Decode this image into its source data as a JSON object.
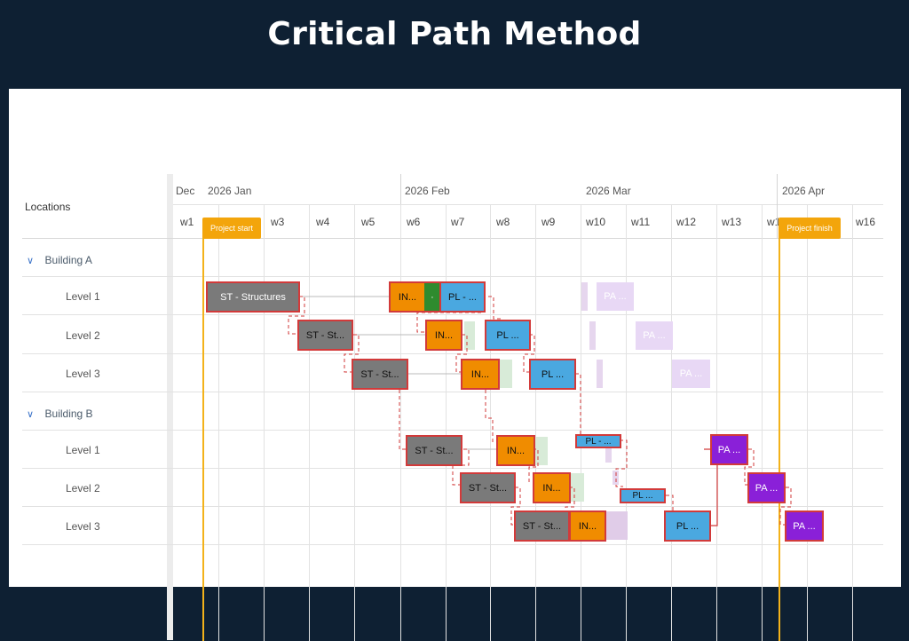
{
  "page_title": "Critical Path Method",
  "header": {
    "locations_label": "Locations",
    "months": [
      "Dec",
      "2026 Jan",
      "2026 Feb",
      "2026 Mar",
      "2026 Apr"
    ],
    "weeks": [
      "w1",
      "w3",
      "w4",
      "w5",
      "w6",
      "w7",
      "w8",
      "w9",
      "w10",
      "w11",
      "w12",
      "w13",
      "w1",
      "w16"
    ]
  },
  "milestones": {
    "start": "Project start",
    "finish": "Project finish"
  },
  "groups": [
    {
      "label": "Building A",
      "levels": [
        "Level 1",
        "Level 2",
        "Level 3"
      ]
    },
    {
      "label": "Building B",
      "levels": [
        "Level 1",
        "Level 2",
        "Level 3"
      ]
    }
  ],
  "tasks": [
    {
      "label": "ST - Structures"
    },
    {
      "label": "IN..."
    },
    {
      "label": "·"
    },
    {
      "label": "PL - ..."
    },
    {
      "label": "PA ..."
    },
    {
      "label": "ST - St..."
    },
    {
      "label": "IN..."
    },
    {
      "label": "PL ..."
    },
    {
      "label": "PA ..."
    },
    {
      "label": "ST - St..."
    },
    {
      "label": "IN..."
    },
    {
      "label": "PL ..."
    },
    {
      "label": "PA ..."
    },
    {
      "label": "ST - St..."
    },
    {
      "label": "IN..."
    },
    {
      "label": "PL - ..."
    },
    {
      "label": "PA ..."
    },
    {
      "label": "ST - St..."
    },
    {
      "label": "IN..."
    },
    {
      "label": "PL ..."
    },
    {
      "label": "PA ..."
    },
    {
      "label": "ST - St..."
    },
    {
      "label": "IN..."
    },
    {
      "label": "PL ..."
    },
    {
      "label": "PA ..."
    }
  ],
  "colors": {
    "structures": "#7a7a7a",
    "install": "#f08c00",
    "install_extra": "#2e8b2e",
    "plumbing": "#4aa8e0",
    "painting": "#8a20d8",
    "painting_ghost": "#e8d8f5",
    "critical_border": "#d23a3a",
    "milestone": "#f3a50b"
  }
}
